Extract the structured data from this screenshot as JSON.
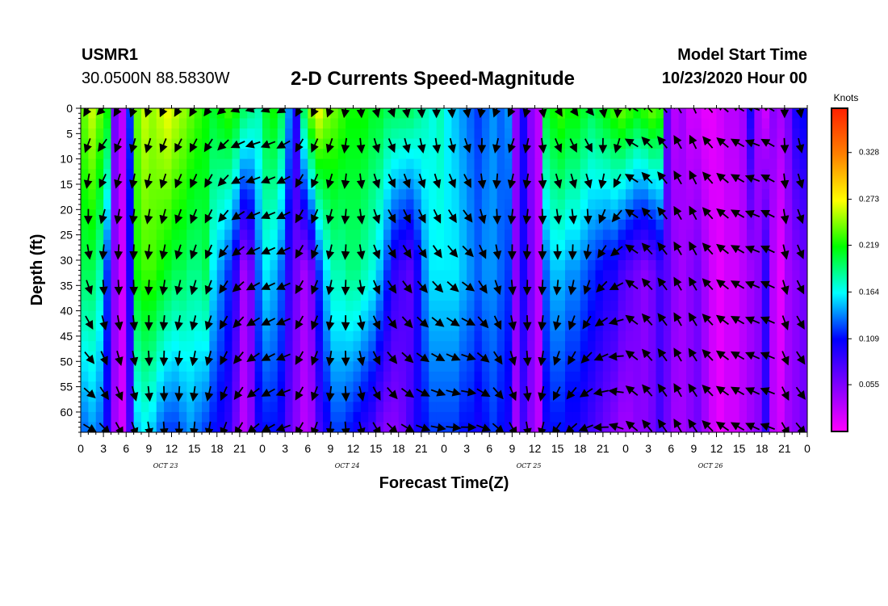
{
  "header": {
    "station": "USMR1",
    "coordinates": "30.0500N 88.5830W",
    "title": "2-D Currents Speed-Magnitude",
    "start_label": "Model Start Time",
    "start_value": "10/23/2020 Hour 00"
  },
  "chart_data": {
    "type": "heatmap",
    "title": "2-D Currents Speed-Magnitude",
    "xlabel": "Forecast Time(Z)",
    "ylabel": "Depth (ft)",
    "x_tick_labels": [
      "0",
      "3",
      "6",
      "9",
      "12",
      "15",
      "18",
      "21",
      "0",
      "3",
      "6",
      "9",
      "12",
      "15",
      "18",
      "21",
      "0",
      "3",
      "6",
      "9",
      "12",
      "15",
      "18",
      "21",
      "0",
      "3",
      "6",
      "9",
      "12",
      "15",
      "18",
      "21",
      "0"
    ],
    "x_range_hours": [
      0,
      96
    ],
    "date_labels": [
      {
        "label": "OCT 23",
        "hour": 11
      },
      {
        "label": "OCT 24",
        "hour": 35
      },
      {
        "label": "OCT 25",
        "hour": 59
      },
      {
        "label": "OCT 26",
        "hour": 83
      }
    ],
    "y_ticks": [
      0,
      5,
      10,
      15,
      20,
      25,
      30,
      35,
      40,
      45,
      50,
      55,
      60
    ],
    "y_range": [
      0,
      64
    ],
    "y_inverted": true,
    "colorbar": {
      "label": "Knots",
      "tick_values": [
        0.055,
        0.109,
        0.164,
        0.219,
        0.273,
        0.328
      ],
      "tick_labels": [
        "0.055",
        "0.109",
        "0.164",
        "0.219",
        "0.273",
        "0.328"
      ],
      "range": [
        0.0,
        0.38
      ],
      "colors": [
        "#ff00ff",
        "#8000ff",
        "#0000ff",
        "#00ffff",
        "#00ff00",
        "#ffff00",
        "#ff8000",
        "#ff2000"
      ]
    },
    "speed_profile_hours": [
      0,
      1,
      2,
      3,
      4,
      5,
      6,
      7,
      8,
      9,
      10,
      11,
      12,
      13,
      14,
      15,
      16,
      17,
      18,
      19,
      20,
      21,
      22,
      23,
      24,
      25,
      26,
      27,
      28,
      29,
      30,
      31,
      32,
      33,
      34,
      35,
      36,
      37,
      38,
      39,
      40,
      41,
      42,
      43,
      44,
      45,
      46,
      47,
      48,
      49,
      50,
      51,
      52,
      53,
      54,
      55,
      56,
      57,
      58,
      59,
      60,
      61,
      62,
      63,
      64,
      65,
      66,
      67,
      68,
      69,
      70,
      71,
      72,
      73,
      74,
      75,
      76,
      77,
      78,
      79,
      80,
      81,
      82,
      83,
      84,
      85,
      86,
      87,
      88,
      89,
      90,
      91,
      92,
      93,
      94,
      95,
      96
    ],
    "speed_surface_knots": [
      0.24,
      0.26,
      0.24,
      0.22,
      0.06,
      0.03,
      0.12,
      0.24,
      0.26,
      0.25,
      0.26,
      0.27,
      0.26,
      0.25,
      0.24,
      0.23,
      0.22,
      0.21,
      0.22,
      0.23,
      0.22,
      0.2,
      0.19,
      0.18,
      0.21,
      0.22,
      0.2,
      0.14,
      0.1,
      0.2,
      0.25,
      0.27,
      0.25,
      0.24,
      0.23,
      0.22,
      0.22,
      0.22,
      0.21,
      0.21,
      0.2,
      0.2,
      0.2,
      0.2,
      0.19,
      0.18,
      0.17,
      0.18,
      0.16,
      0.15,
      0.14,
      0.13,
      0.12,
      0.13,
      0.14,
      0.13,
      0.14,
      0.05,
      0.1,
      0.05,
      0.03,
      0.21,
      0.22,
      0.23,
      0.22,
      0.22,
      0.21,
      0.2,
      0.21,
      0.22,
      0.23,
      0.24,
      0.23,
      0.22,
      0.23,
      0.24,
      0.23,
      0.07,
      0.03,
      0.04,
      0.02,
      0.02,
      0.01,
      0.01,
      0.02,
      0.03,
      0.03,
      0.04,
      0.1,
      0.04,
      0.02,
      0.05,
      0.04,
      0.06,
      0.1,
      0.11,
      0.13
    ],
    "speed_mid_knots": [
      0.2,
      0.2,
      0.18,
      0.12,
      0.05,
      0.02,
      0.1,
      0.22,
      0.23,
      0.23,
      0.22,
      0.21,
      0.2,
      0.2,
      0.19,
      0.19,
      0.2,
      0.16,
      0.14,
      0.12,
      0.09,
      0.04,
      0.06,
      0.13,
      0.16,
      0.15,
      0.13,
      0.09,
      0.06,
      0.04,
      0.06,
      0.12,
      0.16,
      0.18,
      0.18,
      0.19,
      0.19,
      0.18,
      0.17,
      0.15,
      0.12,
      0.09,
      0.08,
      0.07,
      0.1,
      0.14,
      0.16,
      0.16,
      0.16,
      0.16,
      0.15,
      0.14,
      0.13,
      0.14,
      0.14,
      0.13,
      0.12,
      0.05,
      0.1,
      0.06,
      0.03,
      0.13,
      0.15,
      0.15,
      0.14,
      0.14,
      0.13,
      0.12,
      0.11,
      0.1,
      0.1,
      0.08,
      0.07,
      0.06,
      0.05,
      0.06,
      0.08,
      0.07,
      0.05,
      0.04,
      0.05,
      0.06,
      0.04,
      0.02,
      0.01,
      0.02,
      0.02,
      0.03,
      0.04,
      0.05,
      0.09,
      0.03,
      0.01,
      0.04,
      0.05,
      0.06,
      0.07
    ],
    "speed_bottom_knots": [
      0.13,
      0.14,
      0.13,
      0.1,
      0.04,
      0.02,
      0.08,
      0.15,
      0.16,
      0.15,
      0.13,
      0.12,
      0.12,
      0.13,
      0.14,
      0.13,
      0.12,
      0.11,
      0.1,
      0.09,
      0.06,
      0.03,
      0.05,
      0.1,
      0.11,
      0.11,
      0.1,
      0.07,
      0.05,
      0.03,
      0.04,
      0.08,
      0.1,
      0.12,
      0.12,
      0.11,
      0.1,
      0.09,
      0.08,
      0.06,
      0.05,
      0.05,
      0.06,
      0.08,
      0.1,
      0.11,
      0.12,
      0.12,
      0.12,
      0.12,
      0.11,
      0.11,
      0.1,
      0.11,
      0.12,
      0.11,
      0.1,
      0.04,
      0.08,
      0.05,
      0.03,
      0.1,
      0.11,
      0.11,
      0.1,
      0.1,
      0.09,
      0.08,
      0.07,
      0.06,
      0.05,
      0.04,
      0.04,
      0.05,
      0.05,
      0.06,
      0.08,
      0.06,
      0.04,
      0.04,
      0.05,
      0.06,
      0.04,
      0.02,
      0.01,
      0.02,
      0.02,
      0.03,
      0.04,
      0.05,
      0.09,
      0.03,
      0.02,
      0.04,
      0.05,
      0.06,
      0.07
    ],
    "vector_depths_ft": [
      0,
      7,
      14,
      21,
      28,
      35,
      42,
      49,
      56,
      63
    ],
    "vector_hours": [
      1,
      3,
      5,
      7,
      9,
      11,
      13,
      15,
      17,
      19,
      21,
      23,
      25,
      27,
      29,
      31,
      33,
      35,
      37,
      39,
      41,
      43,
      45,
      47,
      49,
      51,
      53,
      55,
      57,
      59,
      61,
      63,
      65,
      67,
      69,
      71,
      73,
      75,
      77,
      79,
      81,
      83,
      85,
      87,
      89,
      91,
      93,
      95
    ],
    "vector_direction_deg_surface": [
      210,
      225,
      210,
      200,
      200,
      205,
      210,
      210,
      215,
      230,
      250,
      255,
      250,
      240,
      210,
      205,
      200,
      190,
      175,
      165,
      160,
      170,
      175,
      180,
      175,
      170,
      190,
      200,
      205,
      195,
      170,
      150,
      145,
      140,
      170,
      185,
      300,
      315,
      320,
      330,
      335,
      320,
      310,
      300,
      290,
      300,
      180,
      170
    ],
    "vector_direction_deg_deep": [
      120,
      135,
      150,
      160,
      170,
      175,
      180,
      185,
      190,
      200,
      210,
      230,
      240,
      250,
      210,
      200,
      185,
      175,
      165,
      150,
      135,
      120,
      110,
      100,
      95,
      90,
      110,
      130,
      150,
      170,
      195,
      215,
      230,
      250,
      270,
      290,
      310,
      320,
      325,
      330,
      325,
      315,
      305,
      300,
      295,
      290,
      150,
      140
    ]
  }
}
